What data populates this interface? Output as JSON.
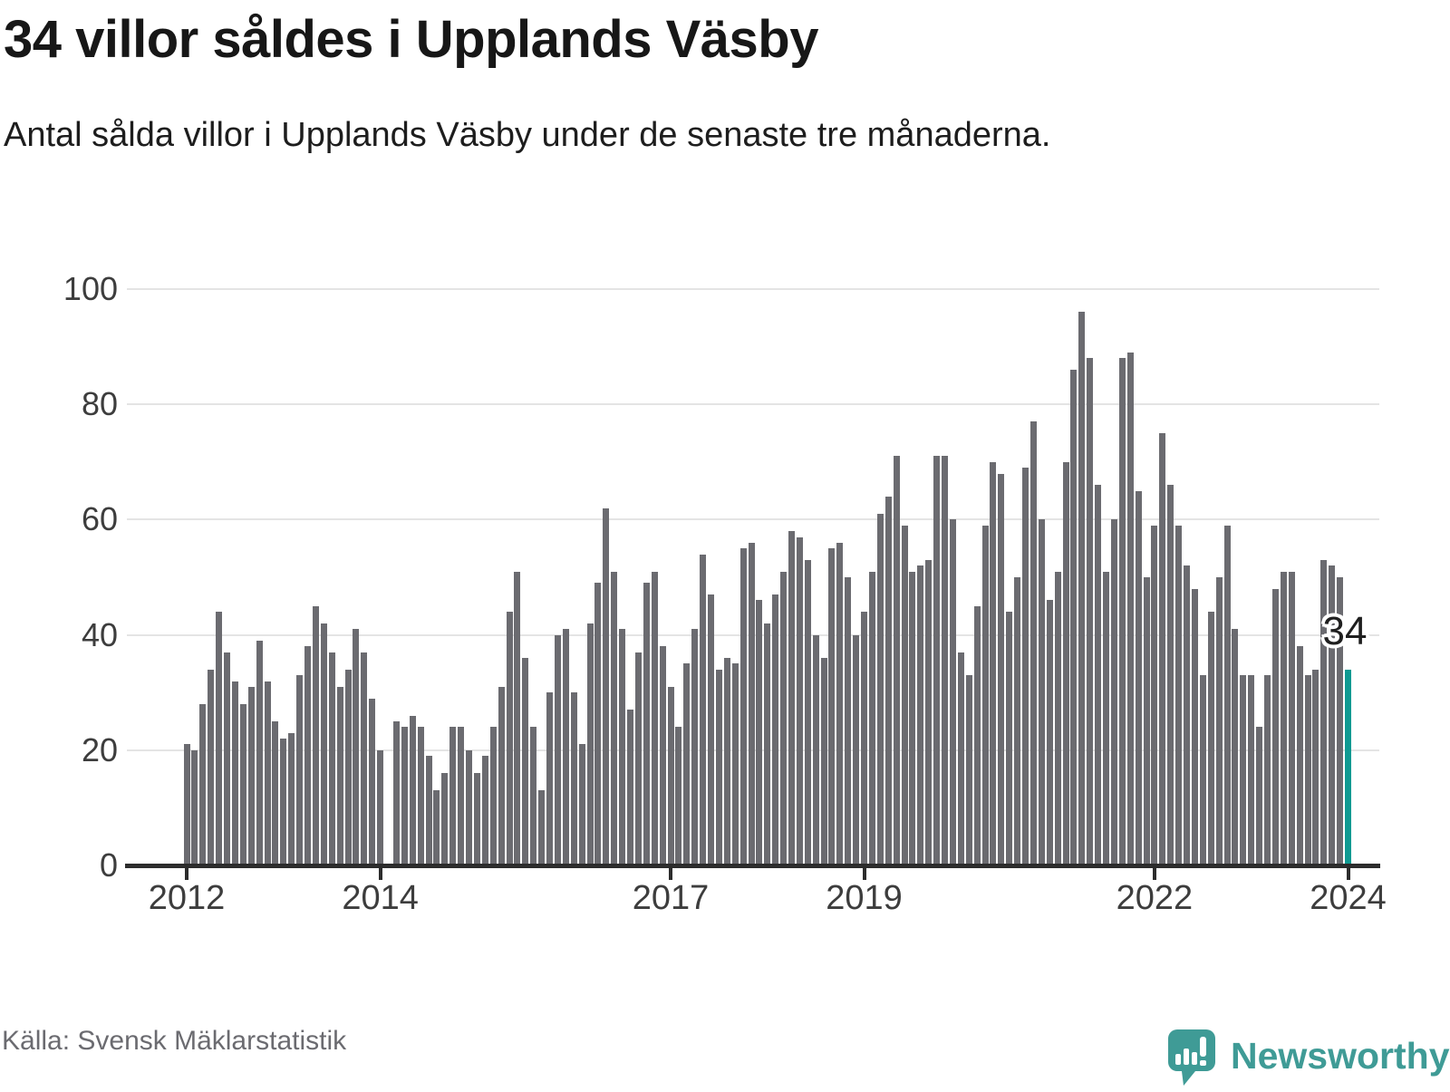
{
  "header": {
    "title": "34 villor såldes i Upplands Väsby",
    "subtitle": "Antal sålda villor i Upplands Väsby under de senaste tre månaderna."
  },
  "footer": {
    "source": "Källa: Svensk Mäklarstatistik",
    "brand": "Newsworthy"
  },
  "colors": {
    "bar": "#6b6b70",
    "accent_teal": "#0f9a92",
    "brand_teal": "#3f9b96",
    "gridline": "#e4e4e4",
    "axis": "#2c2c2c"
  },
  "chart_data": {
    "type": "bar",
    "title": "34 villor såldes i Upplands Väsby",
    "subtitle": "Antal sålda villor i Upplands Väsby under de senaste tre månaderna.",
    "unit": "sålda villor (rullande 3 månader)",
    "start": "2012-01",
    "frequency": "monthly",
    "values": [
      21,
      20,
      28,
      34,
      44,
      37,
      32,
      28,
      31,
      39,
      32,
      25,
      22,
      23,
      33,
      38,
      45,
      42,
      37,
      31,
      34,
      41,
      37,
      29,
      20,
      0,
      25,
      24,
      26,
      24,
      19,
      13,
      16,
      24,
      24,
      20,
      16,
      19,
      24,
      31,
      44,
      51,
      36,
      24,
      13,
      30,
      40,
      41,
      30,
      21,
      42,
      49,
      62,
      51,
      41,
      27,
      37,
      49,
      51,
      38,
      31,
      24,
      35,
      41,
      54,
      47,
      34,
      36,
      35,
      55,
      56,
      46,
      42,
      47,
      51,
      58,
      57,
      53,
      40,
      36,
      55,
      56,
      50,
      40,
      44,
      51,
      61,
      64,
      71,
      59,
      51,
      52,
      53,
      71,
      71,
      60,
      37,
      33,
      45,
      59,
      70,
      68,
      44,
      50,
      69,
      77,
      60,
      46,
      51,
      70,
      86,
      96,
      88,
      66,
      51,
      60,
      88,
      89,
      65,
      50,
      59,
      75,
      66,
      59,
      52,
      48,
      33,
      44,
      50,
      59,
      41,
      33,
      33,
      24,
      33,
      48,
      51,
      51,
      38,
      33,
      34,
      53,
      52,
      50,
      34
    ],
    "highlight": {
      "index": 144,
      "value": 34,
      "label": "34"
    },
    "ylim": [
      0,
      100
    ],
    "yticks": [
      0,
      20,
      40,
      60,
      80,
      100
    ],
    "x_ticks": [
      {
        "label": "2012",
        "year": 2012
      },
      {
        "label": "2014",
        "year": 2014
      },
      {
        "label": "2017",
        "year": 2017
      },
      {
        "label": "2019",
        "year": 2019
      },
      {
        "label": "2022",
        "year": 2022
      },
      {
        "label": "2024",
        "year": 2024
      }
    ],
    "grid": "horizontal",
    "legend": "none"
  }
}
